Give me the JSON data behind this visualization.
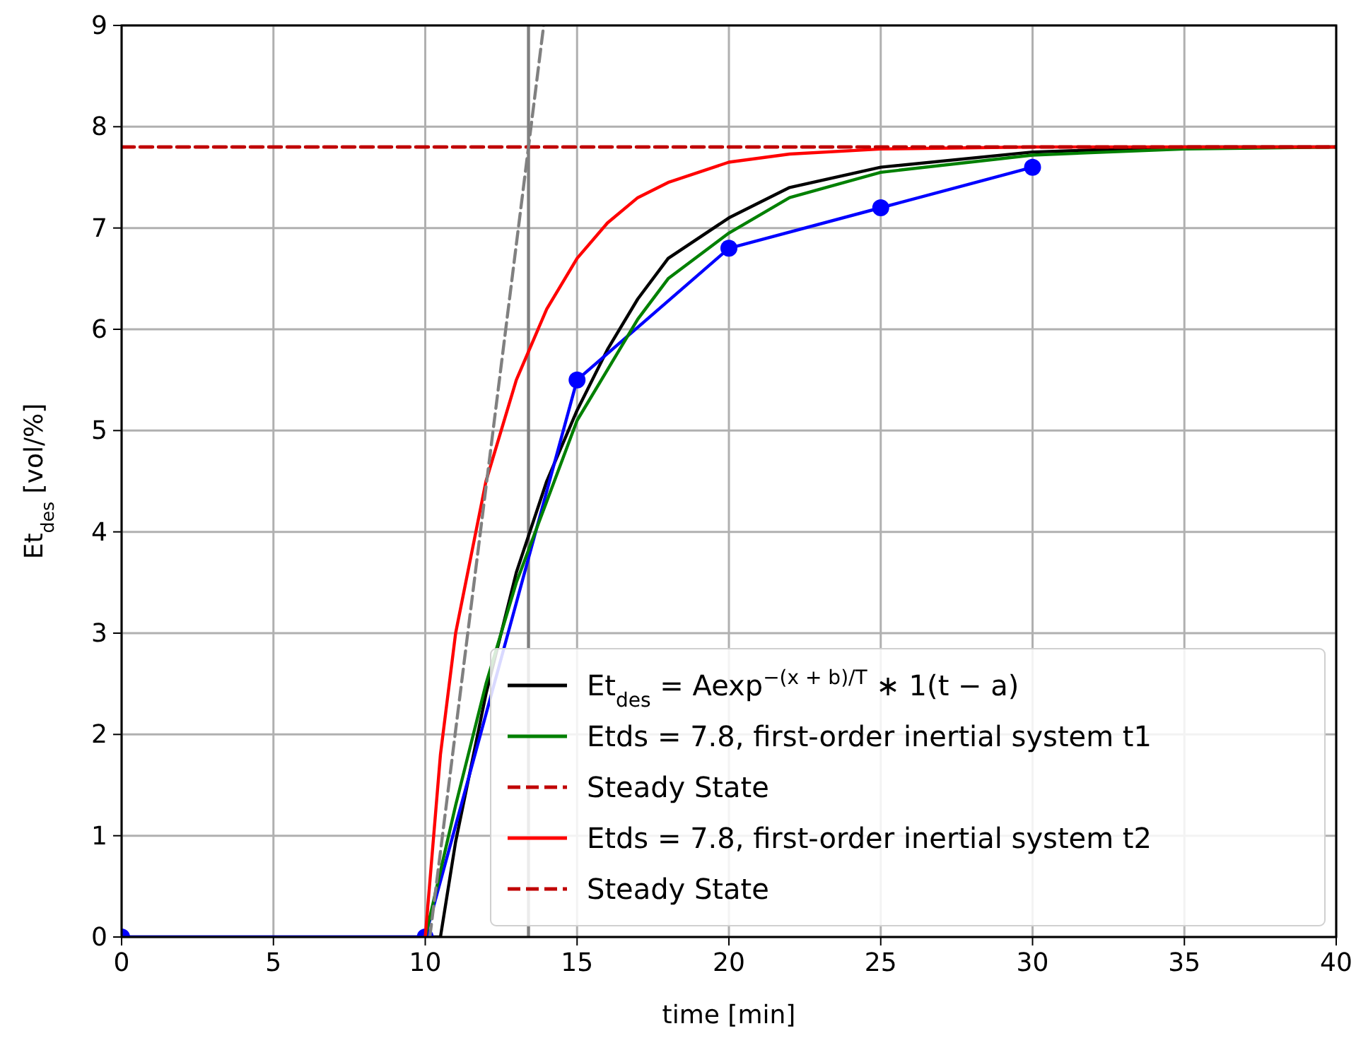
{
  "chart_data": {
    "type": "line",
    "xlabel": "time [min]",
    "ylabel": "Et$_{des}$ [vol/%]",
    "xlim": [
      0,
      40
    ],
    "ylim": [
      0,
      9
    ],
    "xticks": [
      0,
      5,
      10,
      15,
      20,
      25,
      30,
      35,
      40
    ],
    "yticks": [
      0,
      1,
      2,
      3,
      4,
      5,
      6,
      7,
      8,
      9
    ],
    "grid": true,
    "legend": "bottom right",
    "marker": "none",
    "series": [
      {
        "name": "Et$_{des}$ = Aexp$^{−(x + b)/T}$ ∗ 1(t − a)",
        "color": "#000000",
        "x": [
          0,
          10.5,
          11,
          12,
          13,
          14,
          15,
          16,
          17,
          18,
          20,
          22,
          25,
          30,
          35,
          40
        ],
        "values": [
          0,
          0,
          0.94,
          2.4,
          3.6,
          4.5,
          5.2,
          5.8,
          6.3,
          6.7,
          7.1,
          7.4,
          7.6,
          7.75,
          7.8,
          7.8
        ]
      },
      {
        "color": "#0000ff",
        "marker": "circle",
        "x": [
          0,
          10,
          15,
          20,
          25,
          30
        ],
        "values": [
          0,
          0,
          5.5,
          6.8,
          7.2,
          7.6
        ]
      },
      {
        "name": "Etds = 7.8, first-order inertial system t1",
        "color": "#008000",
        "x": [
          10,
          11,
          12,
          13,
          14,
          15,
          16,
          17,
          18,
          20,
          22,
          25,
          30,
          35,
          40
        ],
        "values": [
          0,
          1.3,
          2.5,
          3.5,
          4.3,
          5.1,
          5.6,
          6.1,
          6.5,
          6.95,
          7.3,
          7.55,
          7.72,
          7.78,
          7.8
        ]
      },
      {
        "name": "Steady State",
        "color": "#c00000",
        "line_style": "dashed",
        "x": [
          0,
          40
        ],
        "values": [
          7.8,
          7.8
        ]
      },
      {
        "name": "Etds = 7.8, first-order inertial system t2",
        "color": "#ff0000",
        "x": [
          10,
          10.5,
          11,
          12,
          13,
          14,
          15,
          16,
          17,
          18,
          20,
          22,
          25,
          30,
          40
        ],
        "values": [
          0,
          1.8,
          3.0,
          4.5,
          5.5,
          6.2,
          6.7,
          7.05,
          7.3,
          7.45,
          7.65,
          7.73,
          7.78,
          7.8,
          7.8
        ]
      },
      {
        "name": "Steady State",
        "color": "#c00000",
        "line_style": "dashed",
        "x": [
          0,
          40
        ],
        "values": [
          7.8,
          7.8
        ]
      },
      {
        "color": "#808080",
        "line_style": "dashed",
        "x": [
          10.15,
          13.9
        ],
        "values": [
          0,
          9
        ]
      }
    ],
    "ref_lines": [
      {
        "axis": "x",
        "value": 13.4,
        "color": "#808080"
      }
    ]
  }
}
